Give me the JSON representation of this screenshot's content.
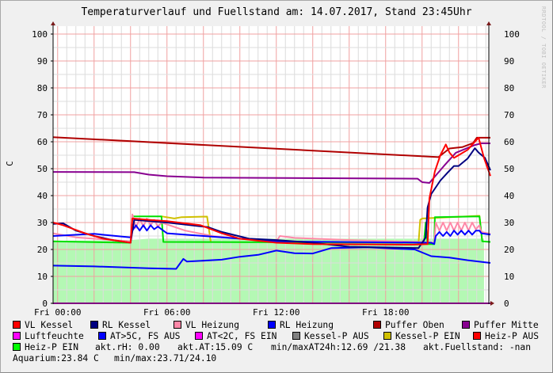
{
  "chart_data": {
    "type": "line",
    "title": "Temperaturverlauf und Fuellstand am: 14.07.2017, Stand 23:45Uhr",
    "ylabel": "C",
    "xlabel": "",
    "watermark": "RRDTOOL / TOBI OETIKER",
    "ylim": [
      0,
      100
    ],
    "xlim": [
      "Thu 23:45",
      "Fri 23:45"
    ],
    "yticks": [
      0,
      10,
      20,
      30,
      40,
      50,
      60,
      70,
      80,
      90,
      100
    ],
    "xticks": [
      "Fri 00:00",
      "Fri 06:00",
      "Fri 12:00",
      "Fri 18:00"
    ],
    "grid": true,
    "axes_right_labels": true,
    "legend_position": "bottom",
    "series": [
      {
        "name": "Aquarium",
        "kind": "area",
        "color": "#B4F8B4",
        "points": [
          [
            "Thu 23:45",
            23.2
          ],
          [
            "Fri 04:00",
            23.5
          ],
          [
            "Fri 05:00",
            24.0
          ],
          [
            "Fri 12:00",
            24.0
          ],
          [
            "Fri 23:24",
            24.0
          ]
        ]
      },
      {
        "name": "Luftfeuchte",
        "color": "#FF00FF",
        "points": [
          [
            "Thu 23:45",
            0
          ],
          [
            "Fri 23:45",
            0
          ]
        ]
      },
      {
        "name": "AT>5C, FS AUS",
        "color": "#0000FF",
        "points": [
          [
            "Thu 23:45",
            14
          ],
          [
            "Fri 02:00",
            13.7
          ],
          [
            "Fri 05:00",
            13
          ],
          [
            "Fri 06:30",
            12.8
          ],
          [
            "Fri 06:54",
            16.5
          ],
          [
            "Fri 07:06",
            15.5
          ],
          [
            "Fri 09:00",
            16.2
          ],
          [
            "Fri 10:00",
            17.3
          ],
          [
            "Fri 11:00",
            18
          ],
          [
            "Fri 12:00",
            19.6
          ],
          [
            "Fri 13:00",
            18.6
          ],
          [
            "Fri 14:00",
            18.5
          ],
          [
            "Fri 15:00",
            20.5
          ],
          [
            "Fri 17:00",
            20.8
          ],
          [
            "Fri 19:36",
            20
          ],
          [
            "Fri 20:30",
            17.5
          ],
          [
            "Fri 21:30",
            17
          ],
          [
            "Fri 22:30",
            16
          ],
          [
            "Fri 23:45",
            15
          ]
        ]
      },
      {
        "name": "Kessel-P EIN",
        "color": "#D0C000",
        "points": [
          [
            "Fri 05:42",
            32.3
          ],
          [
            "Fri 06:24",
            31.5
          ],
          [
            "Fri 06:48",
            32
          ],
          [
            "Fri 08:12",
            32.2
          ],
          [
            "Fri 08:24",
            23
          ],
          null,
          [
            "Fri 19:48",
            22
          ],
          [
            "Fri 19:54",
            31
          ],
          [
            "Fri 20:00",
            31.5
          ],
          [
            "Fri 23:09",
            32.5
          ],
          [
            "Fri 23:18",
            23
          ]
        ]
      },
      {
        "name": "Heiz-P EIN",
        "color": "#00E000",
        "points": [
          [
            "Thu 23:45",
            23
          ],
          [
            "Fri 04:00",
            22.5
          ],
          [
            "Fri 04:06",
            32.3
          ],
          [
            "Fri 05:42",
            32.3
          ],
          [
            "Fri 05:48",
            22.8
          ],
          [
            "Fri 20:06",
            22.5
          ],
          [
            "Fri 20:12",
            30
          ],
          [
            "Fri 20:18",
            22
          ],
          [
            "Fri 20:40",
            22
          ],
          [
            "Fri 20:42",
            32
          ],
          [
            "Fri 23:09",
            32.3
          ],
          [
            "Fri 23:18",
            23
          ],
          [
            "Fri 23:45",
            22.8
          ]
        ]
      },
      {
        "name": "VL Heizung",
        "color": "#FF88A8",
        "points": [
          [
            "Thu 23:45",
            26
          ],
          [
            "Fri 01:00",
            24.5
          ],
          [
            "Fri 04:00",
            23
          ],
          [
            "Fri 04:06",
            33
          ],
          [
            "Fri 04:18",
            28
          ],
          [
            "Fri 04:30",
            31.5
          ],
          [
            "Fri 04:42",
            28.5
          ],
          [
            "Fri 04:54",
            31.5
          ],
          [
            "Fri 05:06",
            29
          ],
          [
            "Fri 05:18",
            31
          ],
          [
            "Fri 05:30",
            28.5
          ],
          [
            "Fri 05:42",
            30
          ],
          [
            "Fri 07:00",
            27
          ],
          [
            "Fri 08:30",
            25
          ],
          [
            "Fri 10:00",
            24
          ],
          [
            "Fri 12:00",
            23
          ],
          [
            "Fri 12:12",
            25
          ],
          [
            "Fri 13:00",
            24.3
          ],
          [
            "Fri 16:00",
            23.5
          ],
          [
            "Fri 19:48",
            22.8
          ],
          [
            "Fri 20:40",
            22.5
          ],
          [
            "Fri 20:45",
            30
          ],
          [
            "Fri 20:57",
            27
          ],
          [
            "Fri 21:09",
            30
          ],
          [
            "Fri 21:21",
            27
          ],
          [
            "Fri 21:33",
            30
          ],
          [
            "Fri 21:45",
            27
          ],
          [
            "Fri 21:57",
            30
          ],
          [
            "Fri 22:09",
            27
          ],
          [
            "Fri 22:21",
            30
          ],
          [
            "Fri 22:33",
            27
          ],
          [
            "Fri 22:45",
            30
          ],
          [
            "Fri 22:57",
            27.5
          ],
          [
            "Fri 23:09",
            29
          ],
          [
            "Fri 23:15",
            26.5
          ],
          [
            "Fri 23:45",
            25.8
          ]
        ]
      },
      {
        "name": "RL Heizung",
        "color": "#0000FF",
        "points": [
          [
            "Thu 23:45",
            25
          ],
          [
            "Fri 02:00",
            25.8
          ],
          [
            "Fri 04:00",
            24.5
          ],
          [
            "Fri 04:06",
            27
          ],
          [
            "Fri 04:18",
            29
          ],
          [
            "Fri 04:30",
            27
          ],
          [
            "Fri 04:42",
            29
          ],
          [
            "Fri 04:54",
            27
          ],
          [
            "Fri 05:06",
            29
          ],
          [
            "Fri 05:18",
            27.5
          ],
          [
            "Fri 05:30",
            28.5
          ],
          [
            "Fri 05:42",
            27.5
          ],
          [
            "Fri 06:00",
            26
          ],
          [
            "Fri 08:00",
            25
          ],
          [
            "Fri 10:00",
            24
          ],
          [
            "Fri 12:00",
            23
          ],
          [
            "Fri 20:30",
            22.5
          ],
          [
            "Fri 20:40",
            22
          ],
          [
            "Fri 20:45",
            25
          ],
          [
            "Fri 20:57",
            26.5
          ],
          [
            "Fri 21:09",
            25
          ],
          [
            "Fri 21:21",
            26.5
          ],
          [
            "Fri 21:33",
            25
          ],
          [
            "Fri 21:45",
            27
          ],
          [
            "Fri 21:57",
            25.5
          ],
          [
            "Fri 22:09",
            27
          ],
          [
            "Fri 22:21",
            25.5
          ],
          [
            "Fri 22:33",
            27
          ],
          [
            "Fri 22:45",
            25.5
          ],
          [
            "Fri 22:57",
            27
          ],
          [
            "Fri 23:09",
            27
          ],
          [
            "Fri 23:15",
            26
          ],
          [
            "Fri 23:45",
            25.5
          ]
        ]
      },
      {
        "name": "Puffer Mitte",
        "color": "#880090",
        "points": [
          [
            "Thu 23:45",
            48.8
          ],
          [
            "Fri 04:12",
            48.7
          ],
          [
            "Fri 05:00",
            47.8
          ],
          [
            "Fri 06:00",
            47.2
          ],
          [
            "Fri 08:00",
            46.7
          ],
          [
            "Fri 19:45",
            46.3
          ],
          [
            "Fri 20:00",
            45
          ],
          [
            "Fri 20:24",
            44.7
          ],
          [
            "Fri 21:12",
            51
          ],
          [
            "Fri 21:51",
            55.9
          ],
          [
            "Fri 22:54",
            58.8
          ],
          [
            "Fri 23:15",
            59.4
          ],
          [
            "Fri 23:45",
            59.4
          ]
        ]
      },
      {
        "name": "Puffer Oben",
        "color": "#B00000",
        "points": [
          [
            "Thu 23:45",
            61.7
          ],
          [
            "Fri 20:54",
            54.3
          ],
          [
            "Fri 21:30",
            57.5
          ],
          [
            "Fri 22:12",
            58
          ],
          [
            "Fri 22:48",
            59.5
          ],
          [
            "Fri 23:00",
            61.5
          ],
          [
            "Fri 23:45",
            61.5
          ]
        ]
      },
      {
        "name": "RL Kessel",
        "color": "#000080",
        "points": [
          [
            "Thu 23:45",
            29.5
          ],
          [
            "Fri 00:18",
            29.7
          ],
          [
            "Fri 01:00",
            27
          ],
          [
            "Fri 02:00",
            25
          ],
          [
            "Fri 03:00",
            23.5
          ],
          [
            "Fri 04:00",
            22.5
          ],
          [
            "Fri 04:12",
            31
          ],
          [
            "Fri 06:00",
            30
          ],
          [
            "Fri 08:15",
            28.3
          ],
          [
            "Fri 09:00",
            26.5
          ],
          [
            "Fri 10:30",
            24
          ],
          [
            "Fri 12:00",
            23.5
          ],
          [
            "Fri 14:00",
            22.5
          ],
          [
            "Fri 16:00",
            21
          ],
          [
            "Fri 19:48",
            20.5
          ],
          [
            "Fri 20:12",
            24.4
          ],
          [
            "Fri 20:18",
            35.6
          ],
          [
            "Fri 20:30",
            40.6
          ],
          [
            "Fri 21:00",
            45.6
          ],
          [
            "Fri 21:24",
            48.5
          ],
          [
            "Fri 21:45",
            51
          ],
          [
            "Fri 22:00",
            51
          ],
          [
            "Fri 22:30",
            53.8
          ],
          [
            "Fri 22:54",
            57.6
          ],
          [
            "Fri 23:06",
            56
          ],
          [
            "Fri 23:27",
            54
          ],
          [
            "Fri 23:45",
            49.4
          ]
        ]
      },
      {
        "name": "VL Kessel",
        "color": "#FF0000",
        "points": [
          [
            "Thu 23:45",
            30
          ],
          [
            "Fri 00:18",
            29
          ],
          [
            "Fri 01:30",
            26
          ],
          [
            "Fri 02:30",
            24
          ],
          [
            "Fri 04:00",
            22.5
          ],
          [
            "Fri 04:06",
            31.5
          ],
          [
            "Fri 05:00",
            31
          ],
          [
            "Fri 06:00",
            30.5
          ],
          [
            "Fri 07:51",
            29
          ],
          [
            "Fri 09:00",
            26
          ],
          [
            "Fri 10:00",
            24
          ],
          [
            "Fri 12:00",
            22.5
          ],
          [
            "Fri 14:00",
            22
          ],
          [
            "Fri 19:30",
            21.8
          ],
          [
            "Fri 20:18",
            22
          ],
          [
            "Fri 20:24",
            39
          ],
          [
            "Fri 20:42",
            49
          ],
          [
            "Fri 21:00",
            55
          ],
          [
            "Fri 21:18",
            59
          ],
          [
            "Fri 21:30",
            56
          ],
          [
            "Fri 21:45",
            54
          ],
          [
            "Fri 22:00",
            55
          ],
          [
            "Fri 22:30",
            57
          ],
          [
            "Fri 22:54",
            60
          ],
          [
            "Fri 23:06",
            61.5
          ],
          [
            "Fri 23:24",
            54
          ],
          [
            "Fri 23:45",
            47.3
          ]
        ]
      }
    ]
  },
  "legend": {
    "row1": [
      {
        "label": "VL Kessel",
        "color": "#FF0000"
      },
      {
        "label": "RL Kessel",
        "color": "#000080"
      },
      {
        "label": "VL Heizung",
        "color": "#FF88A8"
      },
      {
        "label": "RL Heizung",
        "color": "#0000FF"
      },
      {
        "label": "Puffer Oben",
        "color": "#B00000"
      },
      {
        "label": "Puffer Mitte",
        "color": "#880090"
      }
    ],
    "row2": [
      {
        "label": "Luftfeuchte",
        "color": "#FF00FF"
      },
      {
        "label": "AT>5C, FS AUS",
        "color": "#0000FF"
      },
      {
        "label": "AT<2C, FS EIN",
        "color": "#FF00FF"
      },
      {
        "label": "Kessel-P AUS",
        "color": "#808080"
      },
      {
        "label": "Kessel-P EIN",
        "color": "#D0C000"
      },
      {
        "label": "Heiz-P AUS",
        "color": "#FF0000"
      }
    ],
    "row3": [
      {
        "label": "Heiz-P EIN",
        "color": "#00FF00"
      }
    ],
    "stats": {
      "rh": "akt.rH: 0.00",
      "at": "akt.AT:15.09 C",
      "minmax_at": "min/maxAT24h:12.69 /21.38",
      "fuellstand": "akt.Fuellstand: -nan",
      "aquarium": "Aquarium:23.84 C",
      "minmax_aq": "min/max:23.71/24.10"
    }
  }
}
